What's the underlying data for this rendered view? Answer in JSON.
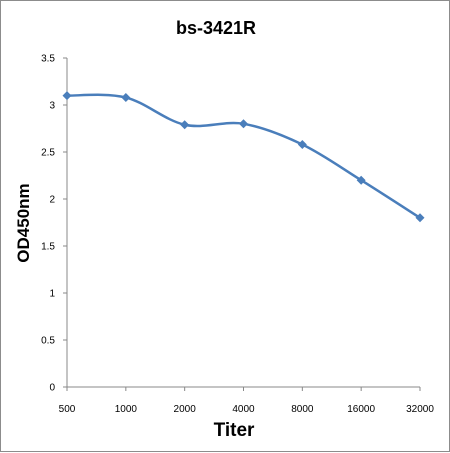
{
  "chart_data": {
    "type": "line",
    "title": "bs-3421R",
    "xlabel": "Titer",
    "ylabel": "OD450nm",
    "categories": [
      "500",
      "1000",
      "2000",
      "4000",
      "8000",
      "16000",
      "32000"
    ],
    "series": [
      {
        "values": [
          3.1,
          3.08,
          2.79,
          2.8,
          2.58,
          2.2,
          1.8
        ]
      }
    ],
    "ylim": [
      0,
      3.5
    ],
    "yticks": [
      "0",
      "0.5",
      "1",
      "1.5",
      "2",
      "2.5",
      "3",
      "3.5"
    ],
    "grid": false,
    "legend": "none",
    "line_color": "#4a7ebb",
    "marker": "diamond"
  }
}
